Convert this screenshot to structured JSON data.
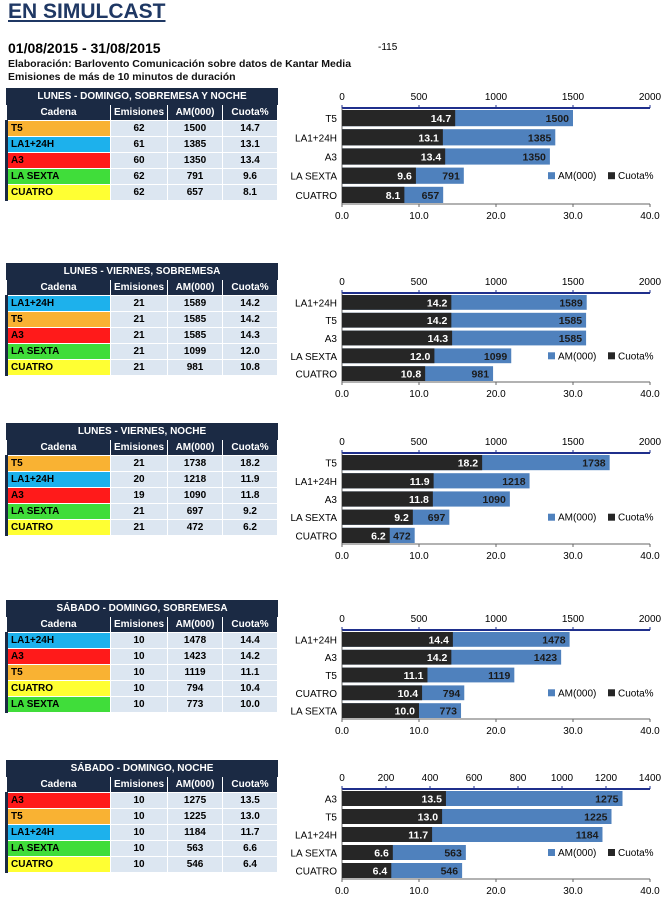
{
  "header": {
    "title": "EN SIMULCAST",
    "dates": "01/08/2015 - 31/08/2015",
    "note": "-115",
    "source": "Elaboración: Barlovento Comunicación sobre datos de Kantar Media",
    "filter": "Emisiones de más de 10 minutos de duración"
  },
  "columns": [
    "Cadena",
    "Emisiones",
    "AM(000)",
    "Cuota%"
  ],
  "channel_colors": {
    "T5": "#f9b233",
    "LA1+24H": "#1db1ec",
    "A3": "#ff1a1a",
    "LA SEXTA": "#40dd3a",
    "CUATRO": "#ffff33"
  },
  "series_colors": {
    "AM(000)": "#4f81bd",
    "Cuota%": "#262626"
  },
  "chart_data": [
    {
      "type": "bar",
      "title": "LUNES - DOMINGO, SOBREMESA Y NOCHE",
      "categories": [
        "T5",
        "LA1+24H",
        "A3",
        "LA SEXTA",
        "CUATRO"
      ],
      "emisiones": [
        62,
        61,
        60,
        62,
        62
      ],
      "series": [
        {
          "name": "AM(000)",
          "values": [
            1500,
            1385,
            1350,
            791,
            657
          ],
          "axis": "top",
          "xlim": [
            0,
            2000
          ],
          "ticks": [
            "0",
            "500",
            "1000",
            "1500",
            "2000"
          ]
        },
        {
          "name": "Cuota%",
          "values": [
            14.7,
            13.1,
            13.4,
            9.6,
            8.1
          ],
          "axis": "bottom",
          "xlim": [
            0,
            40
          ],
          "ticks": [
            "0.0",
            "10.0",
            "20.0",
            "30.0",
            "40.0"
          ]
        }
      ],
      "legend": "bottom-right"
    },
    {
      "type": "bar",
      "title": "LUNES - VIERNES, SOBREMESA",
      "categories": [
        "LA1+24H",
        "T5",
        "A3",
        "LA SEXTA",
        "CUATRO"
      ],
      "emisiones": [
        21,
        21,
        21,
        21,
        21
      ],
      "series": [
        {
          "name": "AM(000)",
          "values": [
            1589,
            1585,
            1585,
            1099,
            981
          ],
          "axis": "top",
          "xlim": [
            0,
            2000
          ],
          "ticks": [
            "0",
            "500",
            "1000",
            "1500",
            "2000"
          ]
        },
        {
          "name": "Cuota%",
          "values": [
            14.2,
            14.2,
            14.3,
            12.0,
            10.8
          ],
          "axis": "bottom",
          "xlim": [
            0,
            40
          ],
          "ticks": [
            "0.0",
            "10.0",
            "20.0",
            "30.0",
            "40.0"
          ]
        }
      ],
      "legend": "bottom-right"
    },
    {
      "type": "bar",
      "title": "LUNES - VIERNES, NOCHE",
      "categories": [
        "T5",
        "LA1+24H",
        "A3",
        "LA SEXTA",
        "CUATRO"
      ],
      "emisiones": [
        21,
        20,
        19,
        21,
        21
      ],
      "series": [
        {
          "name": "AM(000)",
          "values": [
            1738,
            1218,
            1090,
            697,
            472
          ],
          "axis": "top",
          "xlim": [
            0,
            2000
          ],
          "ticks": [
            "0",
            "500",
            "1000",
            "1500",
            "2000"
          ]
        },
        {
          "name": "Cuota%",
          "values": [
            18.2,
            11.9,
            11.8,
            9.2,
            6.2
          ],
          "axis": "bottom",
          "xlim": [
            0,
            40
          ],
          "ticks": [
            "0.0",
            "10.0",
            "20.0",
            "30.0",
            "40.0"
          ]
        }
      ],
      "legend": "bottom-right"
    },
    {
      "type": "bar",
      "title": "SÁBADO - DOMINGO, SOBREMESA",
      "categories": [
        "LA1+24H",
        "A3",
        "T5",
        "CUATRO",
        "LA SEXTA"
      ],
      "emisiones": [
        10,
        10,
        10,
        10,
        10
      ],
      "series": [
        {
          "name": "AM(000)",
          "values": [
            1478,
            1423,
            1119,
            794,
            773
          ],
          "axis": "top",
          "xlim": [
            0,
            2000
          ],
          "ticks": [
            "0",
            "500",
            "1000",
            "1500",
            "2000"
          ]
        },
        {
          "name": "Cuota%",
          "values": [
            14.4,
            14.2,
            11.1,
            10.4,
            10.0
          ],
          "axis": "bottom",
          "xlim": [
            0,
            40
          ],
          "ticks": [
            "0.0",
            "10.0",
            "20.0",
            "30.0",
            "40.0"
          ]
        }
      ],
      "legend": "bottom-right"
    },
    {
      "type": "bar",
      "title": "SÁBADO - DOMINGO, NOCHE",
      "categories": [
        "A3",
        "T5",
        "LA1+24H",
        "LA SEXTA",
        "CUATRO"
      ],
      "emisiones": [
        10,
        10,
        10,
        10,
        10
      ],
      "series": [
        {
          "name": "AM(000)",
          "values": [
            1275,
            1225,
            1184,
            563,
            546
          ],
          "axis": "top",
          "xlim": [
            0,
            1400
          ],
          "ticks": [
            "0",
            "200",
            "400",
            "600",
            "800",
            "1000",
            "1200",
            "1400"
          ]
        },
        {
          "name": "Cuota%",
          "values": [
            13.5,
            13.0,
            11.7,
            6.6,
            6.4
          ],
          "axis": "bottom",
          "xlim": [
            0,
            40
          ],
          "ticks": [
            "0.0",
            "10.0",
            "20.0",
            "30.0",
            "40.0"
          ]
        }
      ],
      "legend": "bottom-right"
    }
  ]
}
